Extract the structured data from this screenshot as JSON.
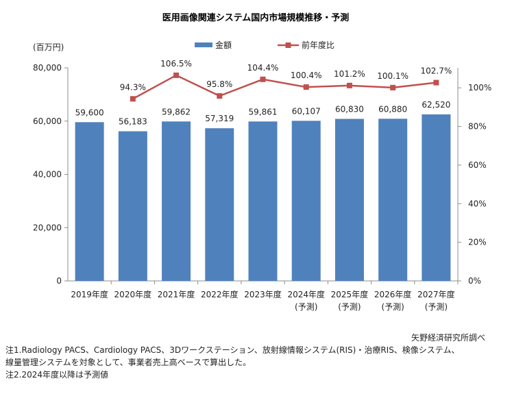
{
  "title": "医用画像関連システム国内市場規模推移・予測",
  "chart_data": {
    "type": "bar+line",
    "categories": [
      [
        "2019年度"
      ],
      [
        "2020年度"
      ],
      [
        "2021年度"
      ],
      [
        "2022年度"
      ],
      [
        "2023年度"
      ],
      [
        "2024年度",
        "(予測)"
      ],
      [
        "2025年度",
        "(予測)"
      ],
      [
        "2026年度",
        "(予測)"
      ],
      [
        "2027年度",
        "(予測)"
      ]
    ],
    "series": [
      {
        "name": "金額",
        "type": "bar",
        "axis": "left",
        "color": "#4f81bd",
        "values": [
          59600,
          56183,
          59862,
          57319,
          59861,
          60107,
          60830,
          60880,
          62520
        ],
        "labels": [
          "59,600",
          "56,183",
          "59,862",
          "57,319",
          "59,861",
          "60,107",
          "60,830",
          "60,880",
          "62,520"
        ]
      },
      {
        "name": "前年度比",
        "type": "line",
        "axis": "right",
        "color": "#c0504d",
        "values": [
          null,
          94.3,
          106.5,
          95.8,
          104.4,
          100.4,
          101.2,
          100.1,
          102.7
        ],
        "labels": [
          "",
          "94.3%",
          "106.5%",
          "95.8%",
          "104.4%",
          "100.4%",
          "101.2%",
          "100.1%",
          "102.7%"
        ]
      }
    ],
    "y_left": {
      "unit_label": "(百万円)",
      "min": 0,
      "max": 80000,
      "ticks": [
        "0",
        "20,000",
        "40,000",
        "60,000",
        "80,000"
      ]
    },
    "y_right": {
      "min": 0,
      "max": 110,
      "ticks": [
        "0%",
        "20%",
        "40%",
        "60%",
        "80%",
        "100%"
      ]
    },
    "legend_position": "top",
    "grid": false
  },
  "source": "矢野経済研究所調べ",
  "notes": [
    "注1.Radiology PACS、Cardiology PACS、3Dワークステーション、放射線情報システム(RIS)・治療RIS、検像システム、",
    "線量管理システムを対象として、事業者売上高ベースで算出した。",
    "注2.2024年度以降は予測値"
  ]
}
